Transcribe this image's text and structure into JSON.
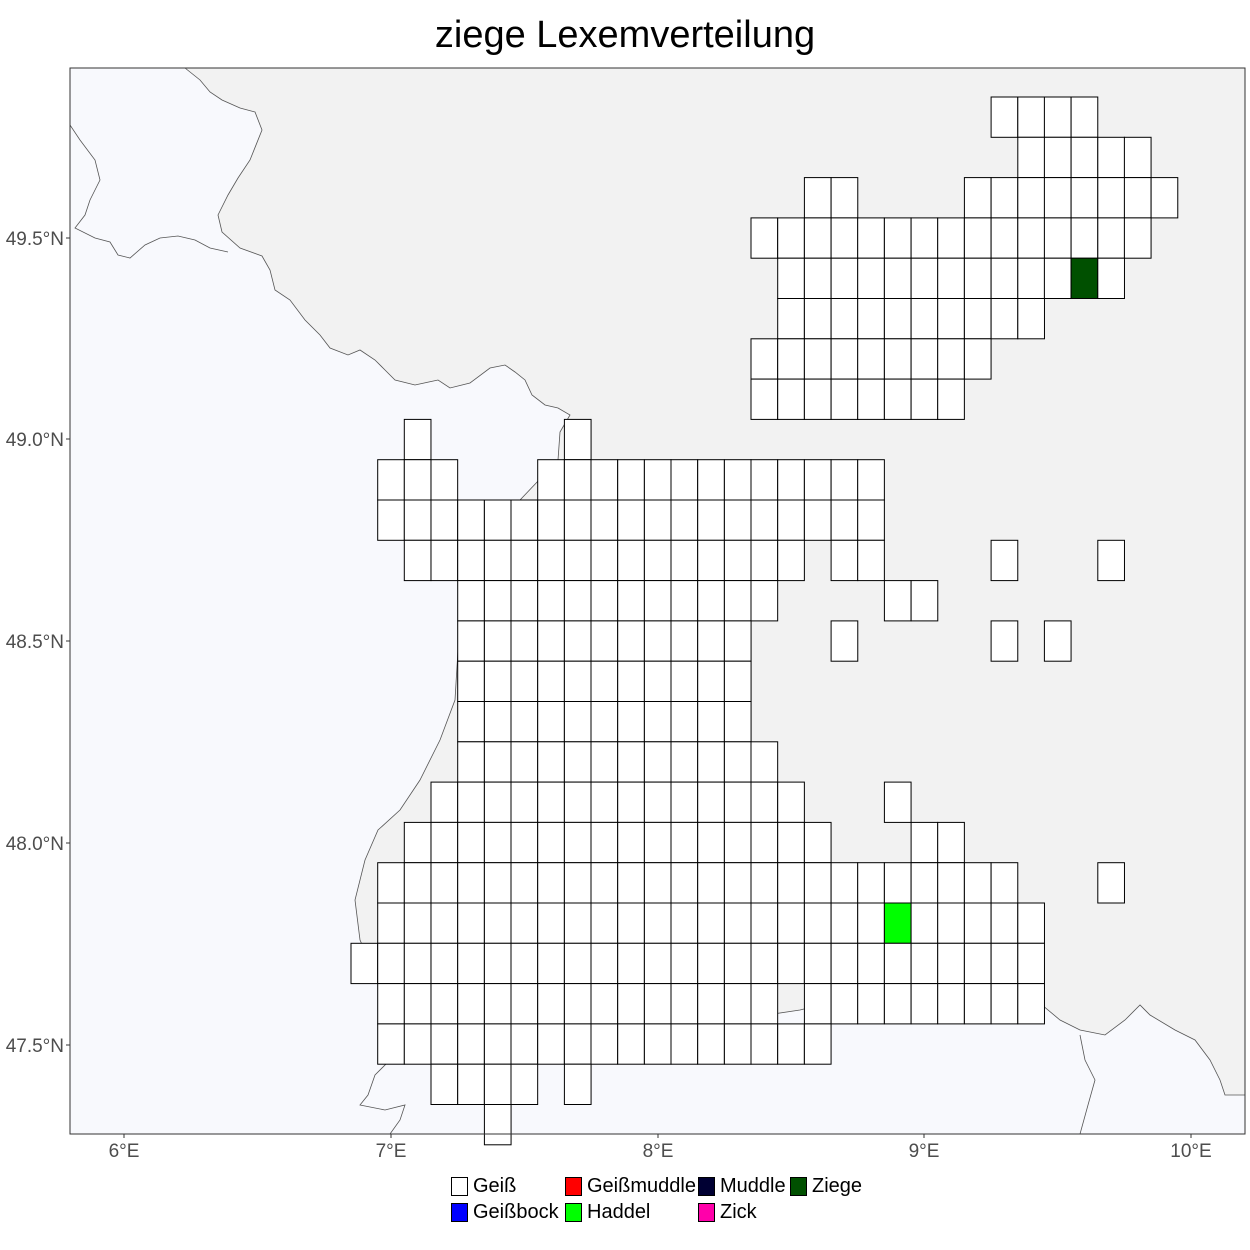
{
  "title": "ziege Lexemverteilung",
  "colors": {
    "panel_background": "#f8f9fd",
    "land_region": "#f2f2f2",
    "border_line": "#555555",
    "cell_outline": "#000000",
    "tick_text": "#4d4d4d"
  },
  "axes": {
    "x_ticks": [
      "6°E",
      "7°E",
      "8°E",
      "9°E",
      "10°E"
    ],
    "y_ticks": [
      "47.5°N",
      "48.0°N",
      "48.5°N",
      "49.0°N",
      "49.5°N"
    ]
  },
  "legend": {
    "items": [
      {
        "label": "Geiß",
        "color": "#ffffff"
      },
      {
        "label": "Geißbock",
        "color": "#0000ff"
      },
      {
        "label": "Geißmuddle",
        "color": "#ff0000"
      },
      {
        "label": "Haddel",
        "color": "#00ff00"
      },
      {
        "label": "Muddle",
        "color": "#000033"
      },
      {
        "label": "Zick",
        "color": "#ff00aa"
      },
      {
        "label": "Ziege",
        "color": "#005000"
      }
    ]
  },
  "map_data": {
    "extent": {
      "lon": [
        5.82,
        10.22
      ],
      "lat": [
        47.28,
        49.93
      ]
    },
    "cell_size": {
      "lon": 0.1,
      "lat": 0.1
    },
    "highlighted_cells": [
      {
        "label": "Ziege",
        "lon": 9.7,
        "lat": 49.4
      },
      {
        "label": "Haddel",
        "lon": 9.0,
        "lat": 47.8
      }
    ]
  }
}
